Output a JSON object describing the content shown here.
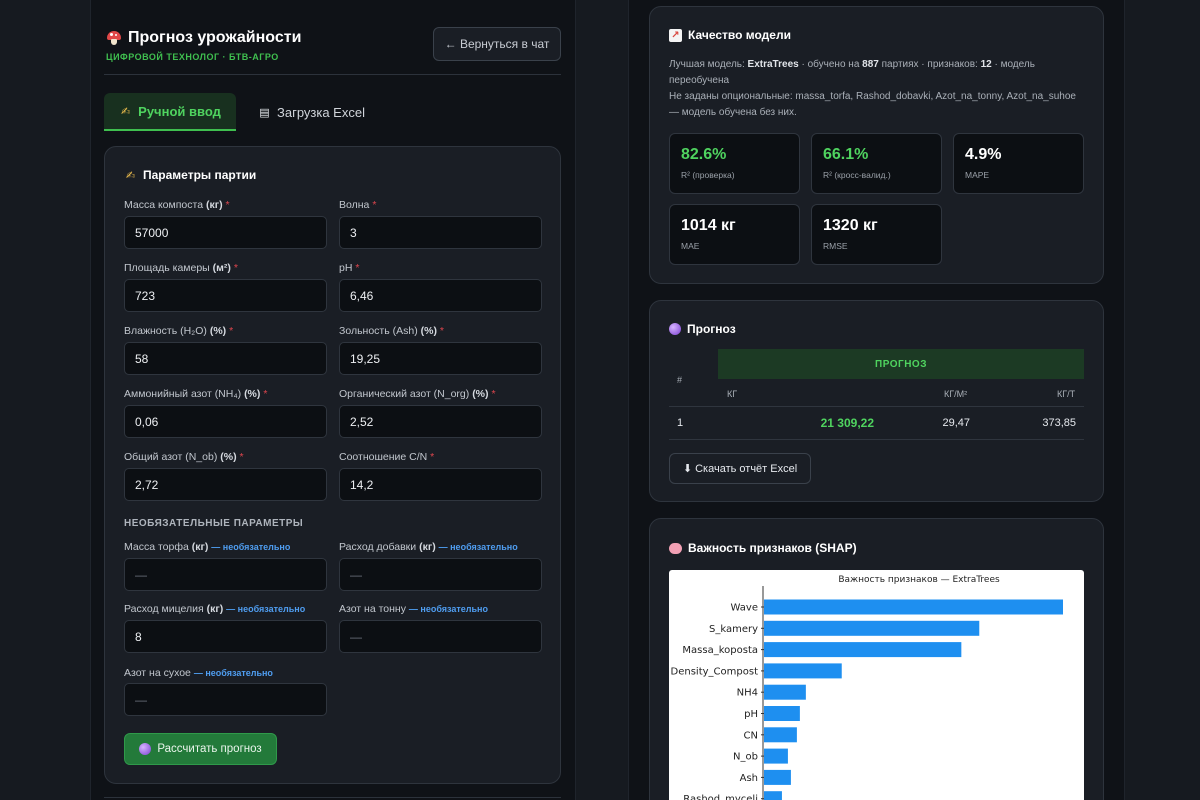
{
  "header": {
    "title_icon": "mushroom-icon",
    "title": "Прогноз урожайности",
    "subtitle": "ЦИФРОВОЙ ТЕХНОЛОГ · БТВ-АГРО",
    "back_button": "← Вернуться в чат"
  },
  "tabs": [
    {
      "label": "Ручной ввод",
      "icon": "writing-hand-icon",
      "active": true
    },
    {
      "label": "Загрузка Excel",
      "icon": "document-icon",
      "active": false
    }
  ],
  "params": {
    "title": "Параметры партии",
    "fields": [
      {
        "label": "Масса компоста",
        "unit": "(кг)",
        "required": "*",
        "value": "57000"
      },
      {
        "label": "Волна",
        "unit": "",
        "required": "*",
        "value": "3"
      },
      {
        "label": "Площадь камеры",
        "unit": "(м²)",
        "required": "*",
        "value": "723"
      },
      {
        "label": "pH",
        "unit": "",
        "required": "*",
        "value": "6,46"
      },
      {
        "label": "Влажность (H₂O)",
        "unit": "(%)",
        "required": "*",
        "value": "58"
      },
      {
        "label": "Зольность (Ash)",
        "unit": "(%)",
        "required": "*",
        "value": "19,25"
      },
      {
        "label": "Аммонийный азот (NH₄)",
        "unit": "(%)",
        "required": "*",
        "value": "0,06"
      },
      {
        "label": "Органический азот (N_org)",
        "unit": "(%)",
        "required": "*",
        "value": "2,52"
      },
      {
        "label": "Общий азот (N_ob)",
        "unit": "(%)",
        "required": "*",
        "value": "2,72"
      },
      {
        "label": "Соотношение C/N",
        "unit": "",
        "required": "*",
        "value": "14,2"
      }
    ],
    "optional_header": "НЕОБЯЗАТЕЛЬНЫЕ ПАРАМЕТРЫ",
    "optional_fields": [
      {
        "label": "Масса торфа",
        "unit": "(кг)",
        "hint": "— необязательно",
        "value": "—"
      },
      {
        "label": "Расход добавки",
        "unit": "(кг)",
        "hint": "— необязательно",
        "value": "—"
      },
      {
        "label": "Расход мицелия",
        "unit": "(кг)",
        "hint": "— необязательно",
        "value": "8"
      },
      {
        "label": "Азот на тонну",
        "unit": "",
        "hint": "— необязательно",
        "value": "—"
      },
      {
        "label": "Азот на сухое",
        "unit": "",
        "hint": "— необязательно",
        "value": "—"
      }
    ],
    "calc_button": "Рассчитать прогноз"
  },
  "model": {
    "title": "Качество модели",
    "line1_prefix": "Лучшая модель: ",
    "model_name": "ExtraTrees",
    "line1_mid": " · обучено на ",
    "train_count": "887",
    "line1_mid2": " партиях · признаков: ",
    "feature_count": "12",
    "line1_suffix": " · модель переобучена",
    "line2": "Не заданы опциональные: massa_torfa, Rashod_dobavki, Azot_na_tonny, Azot_na_suhoe — модель обучена без них.",
    "metrics": [
      {
        "value": "82.6%",
        "label": "R² (проверка)"
      },
      {
        "value": "66.1%",
        "label": "R² (кросс-валид.)"
      },
      {
        "value": "4.9%",
        "label": "MAPE"
      },
      {
        "value": "1014 кг",
        "label": "MAE"
      },
      {
        "value": "1320 кг",
        "label": "RMSE"
      }
    ]
  },
  "forecast": {
    "title": "Прогноз",
    "col_num": "#",
    "group_header": "ПРОГНОЗ",
    "sub_headers": [
      "КГ",
      "КГ/М²",
      "КГ/Т"
    ],
    "row": {
      "num": "1",
      "kg": "21 309,22",
      "kg_m2": "29,47",
      "kg_t": "373,85"
    },
    "download_button": "⬇ Скачать отчёт Excel"
  },
  "shap": {
    "title": "Важность признаков (SHAP)"
  },
  "chart_data": {
    "type": "bar",
    "orientation": "horizontal",
    "title": "Важность признаков — ExtraTrees",
    "categories": [
      "Wave",
      "S_kamery",
      "Massa_koposta",
      "Density_Compost",
      "NH4",
      "pH",
      "CN",
      "N_ob",
      "Ash",
      "Rashod_myceli"
    ],
    "values": [
      1.0,
      0.72,
      0.66,
      0.26,
      0.14,
      0.12,
      0.11,
      0.08,
      0.09,
      0.06
    ],
    "bar_color": "#1e8ff0",
    "grid": false
  }
}
